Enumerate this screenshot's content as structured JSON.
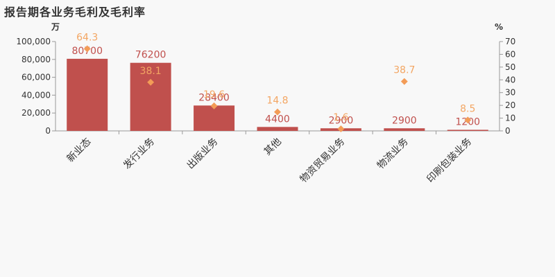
{
  "title": "报告期各业务毛利及毛利率",
  "colors": {
    "bar": "#c0504d",
    "bar_label": "#c0504d",
    "marker": "#f39c57",
    "marker_label": "#f3a663",
    "axis_text": "#333333",
    "axis_line": "#999999",
    "background": "#f8f8f8"
  },
  "chart_data": {
    "type": "bar",
    "title": "报告期各业务毛利及毛利率",
    "categories": [
      "新业态",
      "发行业务",
      "出版业务",
      "其他",
      "物资贸易业务",
      "物流业务",
      "印刷包装业务"
    ],
    "series": [
      {
        "name": "毛利",
        "type": "bar",
        "axis": "left",
        "values": [
          80700,
          76200,
          28400,
          4400,
          2900,
          2900,
          1200
        ],
        "labels": [
          "80700",
          "76200",
          "28400",
          "4400",
          "2900",
          "2900",
          "1200"
        ]
      },
      {
        "name": "毛利率",
        "type": "scatter",
        "axis": "right",
        "values": [
          64.3,
          38.1,
          19.6,
          14.8,
          1.6,
          38.7,
          8.5
        ],
        "labels": [
          "64.3",
          "38.1",
          "19.6",
          "14.8",
          "1.6",
          "38.7",
          "8.5"
        ]
      }
    ],
    "y_left": {
      "unit": "万",
      "ylim": [
        0,
        100000
      ],
      "ticks": [
        0,
        20000,
        40000,
        60000,
        80000,
        100000
      ],
      "tick_labels": [
        "0",
        "20,000",
        "40,000",
        "60,000",
        "80,000",
        "100,000"
      ]
    },
    "y_right": {
      "unit": "%",
      "ylim": [
        0,
        70
      ],
      "ticks": [
        0,
        10,
        20,
        30,
        40,
        50,
        60,
        70
      ],
      "tick_labels": [
        "0",
        "10",
        "20",
        "30",
        "40",
        "50",
        "60",
        "70"
      ]
    },
    "grid": false,
    "legend": "none"
  }
}
